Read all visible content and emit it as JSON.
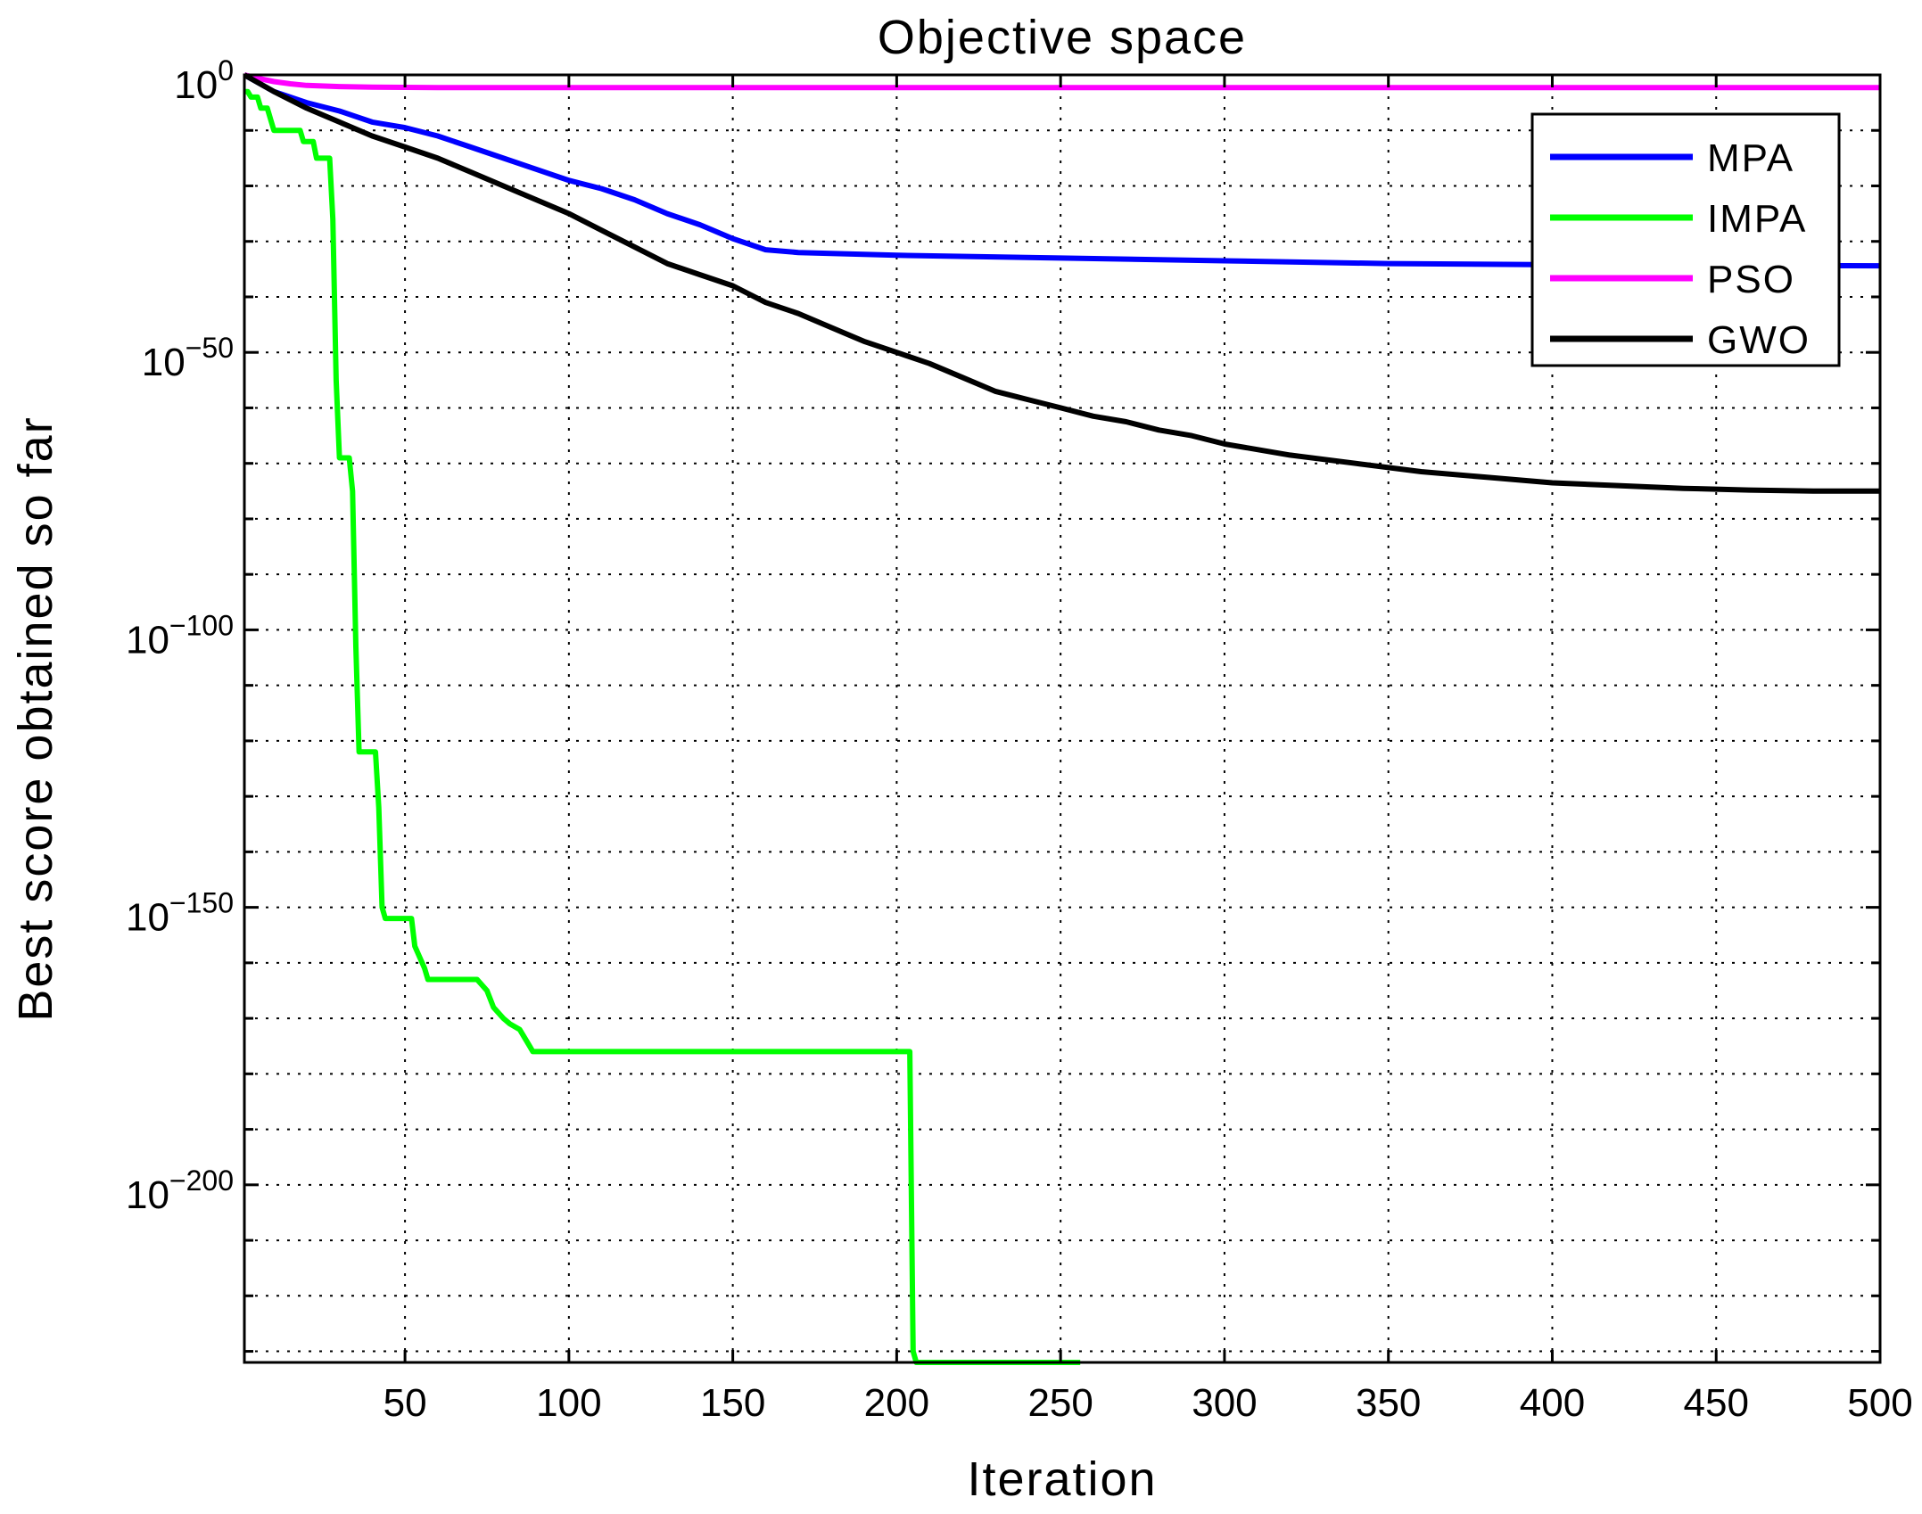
{
  "chart_data": {
    "type": "line",
    "title": "Objective space",
    "xlabel": "Iteration",
    "ylabel": "Best score obtained so far",
    "xlim": [
      1,
      500
    ],
    "ylog": true,
    "ylim_exp": [
      -232,
      0
    ],
    "xticks": [
      "50",
      "100",
      "150",
      "200",
      "250",
      "300",
      "350",
      "400",
      "450",
      "500"
    ],
    "xtick_values": [
      50,
      100,
      150,
      200,
      250,
      300,
      350,
      400,
      450,
      500
    ],
    "yticks": [
      {
        "base": "10",
        "exp": "0",
        "value_exp": 0
      },
      {
        "base": "10",
        "exp": "−50",
        "value_exp": -50
      },
      {
        "base": "10",
        "exp": "−100",
        "value_exp": -100
      },
      {
        "base": "10",
        "exp": "−150",
        "value_exp": -150
      },
      {
        "base": "10",
        "exp": "−200",
        "value_exp": -200
      }
    ],
    "grid": true,
    "legend_position": "top-right",
    "y_units_note": "values are log10 of best score",
    "series": [
      {
        "name": "MPA",
        "color": "#0000ff",
        "x": [
          1,
          10,
          20,
          30,
          40,
          50,
          60,
          70,
          80,
          90,
          100,
          110,
          120,
          130,
          140,
          150,
          160,
          170,
          200,
          250,
          300,
          350,
          400,
          450,
          500
        ],
        "log10y": [
          0,
          -3,
          -5,
          -6.5,
          -8.5,
          -9.5,
          -11,
          -13,
          -15,
          -17,
          -19,
          -20.5,
          -22.5,
          -25,
          -27,
          -29.5,
          -31.5,
          -32,
          -32.5,
          -33,
          -33.5,
          -34,
          -34.2,
          -34.3,
          -34.4
        ]
      },
      {
        "name": "IMPA",
        "color": "#00ff00",
        "x": [
          1,
          2,
          3,
          5,
          6,
          8,
          9,
          10,
          14,
          15,
          18,
          19,
          22,
          23,
          26,
          27,
          28,
          29,
          30,
          31,
          33,
          34,
          35,
          36,
          37,
          38,
          41,
          42,
          43,
          44,
          46,
          50,
          52,
          53,
          56,
          57,
          65,
          71,
          72,
          75,
          77,
          80,
          82,
          85,
          86,
          88,
          89,
          203,
          204,
          205,
          206,
          256
        ],
        "log10y": [
          -3,
          -3,
          -4,
          -4,
          -6,
          -6,
          -8,
          -10,
          -10,
          -10,
          -10,
          -12,
          -12,
          -15,
          -15,
          -15,
          -26,
          -55,
          -69,
          -69,
          -69,
          -75,
          -103,
          -122,
          -122,
          -122,
          -122,
          -132,
          -150,
          -152,
          -152,
          -152,
          -152,
          -157,
          -161,
          -163,
          -163,
          -163,
          -163,
          -165,
          -168,
          -170,
          -171,
          -172,
          -173,
          -175,
          -176,
          -176,
          -176,
          -230,
          -232,
          -232
        ]
      },
      {
        "name": "PSO",
        "color": "#ff00ff",
        "x": [
          1,
          5,
          10,
          15,
          20,
          30,
          40,
          60,
          100,
          200,
          300,
          400,
          500
        ],
        "log10y": [
          0,
          -0.6,
          -1.2,
          -1.6,
          -1.9,
          -2.1,
          -2.2,
          -2.3,
          -2.3,
          -2.3,
          -2.3,
          -2.3,
          -2.3
        ]
      },
      {
        "name": "GWO",
        "color": "#000000",
        "x": [
          1,
          10,
          20,
          30,
          40,
          50,
          60,
          70,
          80,
          90,
          100,
          110,
          120,
          130,
          140,
          150,
          160,
          170,
          180,
          190,
          200,
          210,
          220,
          230,
          240,
          250,
          260,
          270,
          280,
          290,
          300,
          320,
          340,
          360,
          380,
          400,
          420,
          440,
          460,
          480,
          500
        ],
        "log10y": [
          0,
          -3,
          -6,
          -8.5,
          -11,
          -13,
          -15,
          -17.5,
          -20,
          -22.5,
          -25,
          -28,
          -31,
          -34,
          -36,
          -38,
          -41,
          -43,
          -45.5,
          -48,
          -50,
          -52,
          -54.5,
          -57,
          -58.5,
          -60,
          -61.5,
          -62.5,
          -64,
          -65,
          -66.5,
          -68.5,
          -70,
          -71.5,
          -72.5,
          -73.5,
          -74,
          -74.5,
          -74.8,
          -75,
          -75
        ]
      }
    ]
  }
}
